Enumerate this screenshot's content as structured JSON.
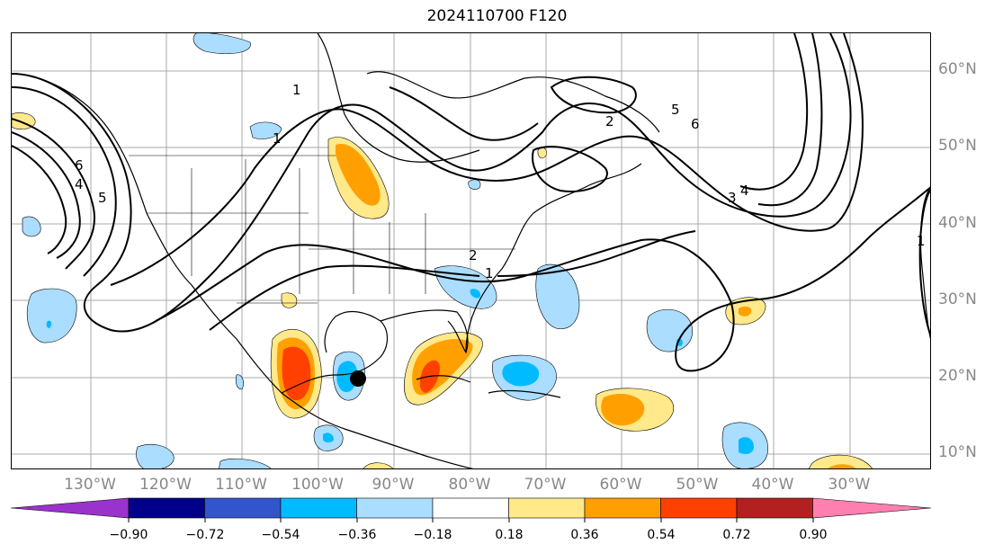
{
  "title": "2024110700 F120",
  "lat_labels": [
    "60°N",
    "50°N",
    "40°N",
    "30°N",
    "20°N",
    "10°N"
  ],
  "lon_labels": [
    "130°W",
    "120°W",
    "110°W",
    "100°W",
    "90°W",
    "80°W",
    "70°W",
    "60°W",
    "50°W",
    "40°W",
    "30°W"
  ],
  "contour_labels": [
    "6",
    "4",
    "5",
    "1",
    "2",
    "1",
    "1",
    "2",
    "3",
    "4",
    "5",
    "6",
    "1"
  ],
  "colorbar": {
    "ticks": [
      "−0.90",
      "−0.72",
      "−0.54",
      "−0.36",
      "−0.18",
      "0.18",
      "0.36",
      "0.54",
      "0.72",
      "0.90"
    ],
    "colors": [
      "#9933cc",
      "#000088",
      "#3355cc",
      "#00bbff",
      "#aaddff",
      "#ffffff",
      "#ffe98a",
      "#ffa000",
      "#ff4000",
      "#b22020",
      "#ff80b0"
    ]
  },
  "storm_marker": "black-dot-icon"
}
